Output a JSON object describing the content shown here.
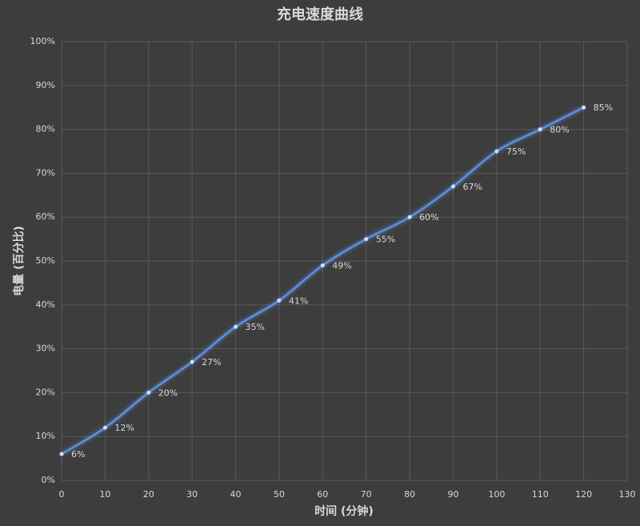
{
  "chart_data": {
    "type": "line",
    "title": "充电速度曲线",
    "x_label": "时间 (分钟)",
    "y_label": "电量 (百分比)",
    "x": [
      0,
      10,
      20,
      30,
      40,
      50,
      60,
      70,
      80,
      90,
      100,
      110,
      120
    ],
    "series": [
      {
        "color": "#5b8fe0",
        "values": [
          6,
          12,
          20,
          27,
          35,
          41,
          49,
          55,
          60,
          67,
          75,
          80,
          85
        ],
        "value_labels": [
          "6%",
          "12%",
          "20%",
          "27%",
          "35%",
          "41%",
          "49%",
          "55%",
          "60%",
          "67%",
          "75%",
          "80%",
          "85%"
        ]
      }
    ],
    "xlim": [
      0,
      130
    ],
    "xticks": [
      0,
      10,
      20,
      30,
      40,
      50,
      60,
      70,
      80,
      90,
      100,
      110,
      120,
      130
    ],
    "ylim": [
      0,
      100
    ],
    "yticks": [
      {
        "value": 0,
        "label": "0%"
      },
      {
        "value": 10,
        "label": "10%"
      },
      {
        "value": 20,
        "label": "20%"
      },
      {
        "value": 30,
        "label": "30%"
      },
      {
        "value": 40,
        "label": "40%"
      },
      {
        "value": 50,
        "label": "50%"
      },
      {
        "value": 60,
        "label": "60%"
      },
      {
        "value": 70,
        "label": "70%"
      },
      {
        "value": 80,
        "label": "80%"
      },
      {
        "value": 90,
        "label": "90%"
      },
      {
        "value": 100,
        "label": "100%"
      }
    ],
    "grid": true
  }
}
